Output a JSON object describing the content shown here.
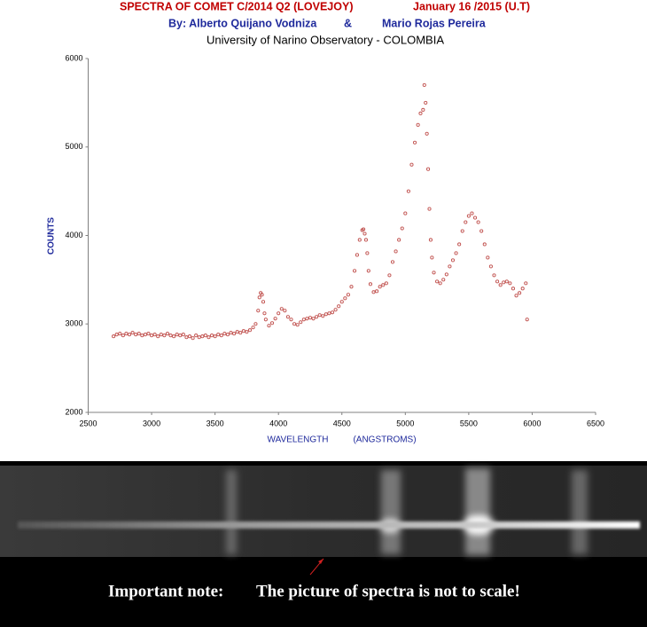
{
  "chart_data": {
    "type": "scatter",
    "title": "SPECTRA OF COMET C/2014 Q2 (LOVEJOY)",
    "date": "January 16 /2015 (U.T)",
    "authors": {
      "by": "By:  Alberto Quijano Vodniza",
      "and": "&",
      "second": "Mario Rojas Pereira"
    },
    "institution": "University of Narino Observatory - COLOMBIA",
    "xlabel": "WAVELENGTH",
    "xlabel_unit": "(ANGSTROMS)",
    "ylabel": "COUNTS",
    "note": {
      "label": "Important note:",
      "text": "The picture of spectra is not to scale!"
    },
    "color": "#c0504d",
    "xlim": [
      2500,
      6500
    ],
    "xticks": [
      2500,
      3000,
      3500,
      4000,
      4500,
      5000,
      5500,
      6000,
      6500
    ],
    "ylim": [
      2000,
      6000
    ],
    "yticks": [
      2000,
      3000,
      4000,
      5000,
      6000
    ],
    "x": [
      2700,
      2725,
      2750,
      2775,
      2800,
      2825,
      2850,
      2875,
      2900,
      2925,
      2950,
      2975,
      3000,
      3025,
      3050,
      3075,
      3100,
      3125,
      3150,
      3175,
      3200,
      3225,
      3250,
      3275,
      3300,
      3325,
      3350,
      3375,
      3400,
      3425,
      3450,
      3475,
      3500,
      3525,
      3550,
      3575,
      3600,
      3625,
      3650,
      3675,
      3700,
      3725,
      3750,
      3775,
      3800,
      3820,
      3840,
      3850,
      3860,
      3870,
      3880,
      3890,
      3900,
      3925,
      3950,
      3975,
      4000,
      4025,
      4050,
      4075,
      4100,
      4125,
      4150,
      4175,
      4200,
      4225,
      4250,
      4275,
      4300,
      4325,
      4350,
      4375,
      4400,
      4425,
      4450,
      4475,
      4500,
      4525,
      4550,
      4575,
      4600,
      4620,
      4640,
      4660,
      4670,
      4680,
      4690,
      4700,
      4710,
      4725,
      4750,
      4775,
      4800,
      4825,
      4850,
      4875,
      4900,
      4925,
      4950,
      4975,
      5000,
      5025,
      5050,
      5075,
      5100,
      5120,
      5140,
      5150,
      5160,
      5170,
      5180,
      5190,
      5200,
      5210,
      5225,
      5250,
      5275,
      5300,
      5325,
      5350,
      5375,
      5400,
      5425,
      5450,
      5475,
      5500,
      5525,
      5550,
      5575,
      5600,
      5625,
      5650,
      5675,
      5700,
      5725,
      5750,
      5775,
      5800,
      5825,
      5850,
      5875,
      5900,
      5925,
      5950,
      5960
    ],
    "values": [
      2860,
      2880,
      2890,
      2870,
      2890,
      2880,
      2900,
      2880,
      2890,
      2870,
      2880,
      2890,
      2870,
      2880,
      2860,
      2880,
      2870,
      2890,
      2870,
      2860,
      2880,
      2870,
      2880,
      2850,
      2860,
      2840,
      2870,
      2850,
      2860,
      2870,
      2850,
      2870,
      2860,
      2880,
      2870,
      2890,
      2880,
      2900,
      2890,
      2910,
      2900,
      2920,
      2910,
      2930,
      2960,
      3000,
      3150,
      3300,
      3350,
      3330,
      3250,
      3120,
      3050,
      2980,
      3010,
      3060,
      3120,
      3170,
      3150,
      3080,
      3050,
      3000,
      2990,
      3020,
      3050,
      3060,
      3070,
      3060,
      3080,
      3100,
      3090,
      3110,
      3120,
      3130,
      3160,
      3200,
      3250,
      3290,
      3330,
      3420,
      3600,
      3780,
      3950,
      4060,
      4070,
      4020,
      3950,
      3800,
      3600,
      3450,
      3360,
      3370,
      3420,
      3440,
      3460,
      3550,
      3700,
      3820,
      3950,
      4080,
      4250,
      4500,
      4800,
      5050,
      5250,
      5380,
      5420,
      5700,
      5500,
      5150,
      4750,
      4300,
      3950,
      3750,
      3580,
      3480,
      3460,
      3500,
      3560,
      3650,
      3720,
      3800,
      3900,
      4050,
      4150,
      4220,
      4250,
      4200,
      4150,
      4050,
      3900,
      3750,
      3650,
      3550,
      3480,
      3440,
      3470,
      3480,
      3460,
      3400,
      3320,
      3350,
      3400,
      3460,
      3050
    ]
  }
}
